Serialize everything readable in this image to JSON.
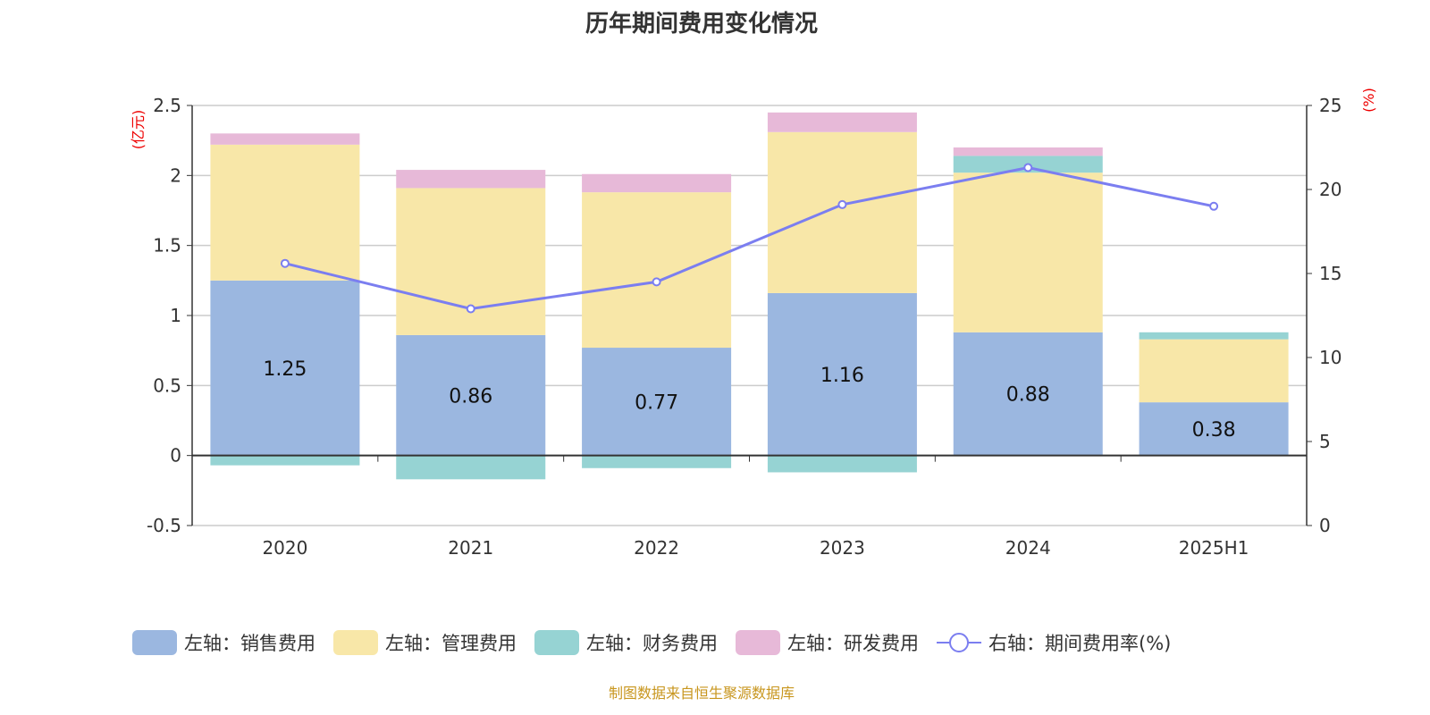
{
  "chart_data": {
    "type": "bar",
    "title": "历年期间费用变化情况",
    "categories": [
      "2020",
      "2021",
      "2022",
      "2023",
      "2024",
      "2025H1"
    ],
    "left_axis": {
      "unit_label": "(亿元)",
      "ylim": [
        -0.5,
        2.5
      ],
      "ticks": [
        "-0.5",
        "0",
        "0.5",
        "1",
        "1.5",
        "2",
        "2.5"
      ]
    },
    "right_axis": {
      "unit_label": "(%)",
      "ylim": [
        0,
        25
      ],
      "ticks": [
        "0",
        "5",
        "10",
        "15",
        "20",
        "25"
      ]
    },
    "grid": true,
    "legend_position": "bottom",
    "series": [
      {
        "name": "左轴：销售费用",
        "type": "bar",
        "axis": "left",
        "color": "#9bb7e0",
        "values": [
          1.25,
          0.86,
          0.77,
          1.16,
          0.88,
          0.38
        ],
        "data_labels": [
          "1.25",
          "0.86",
          "0.77",
          "1.16",
          "0.88",
          "0.38"
        ]
      },
      {
        "name": "左轴：管理费用",
        "type": "bar",
        "axis": "left",
        "color": "#f8e7a8",
        "values": [
          0.97,
          1.05,
          1.11,
          1.15,
          1.14,
          0.45
        ]
      },
      {
        "name": "左轴：财务费用",
        "type": "bar",
        "axis": "left",
        "color": "#96d3d3",
        "values": [
          -0.07,
          -0.17,
          -0.09,
          -0.12,
          0.12,
          0.05
        ]
      },
      {
        "name": "左轴：研发费用",
        "type": "bar",
        "axis": "left",
        "color": "#e7b9d8",
        "values": [
          0.08,
          0.13,
          0.13,
          0.14,
          0.06,
          0
        ]
      },
      {
        "name": "右轴：期间费用率(%)",
        "type": "line",
        "axis": "right",
        "color": "#7b7ef0",
        "values": [
          15.6,
          12.9,
          14.5,
          19.1,
          21.3,
          19.0
        ]
      }
    ]
  },
  "footer": "制图数据来自恒生聚源数据库"
}
